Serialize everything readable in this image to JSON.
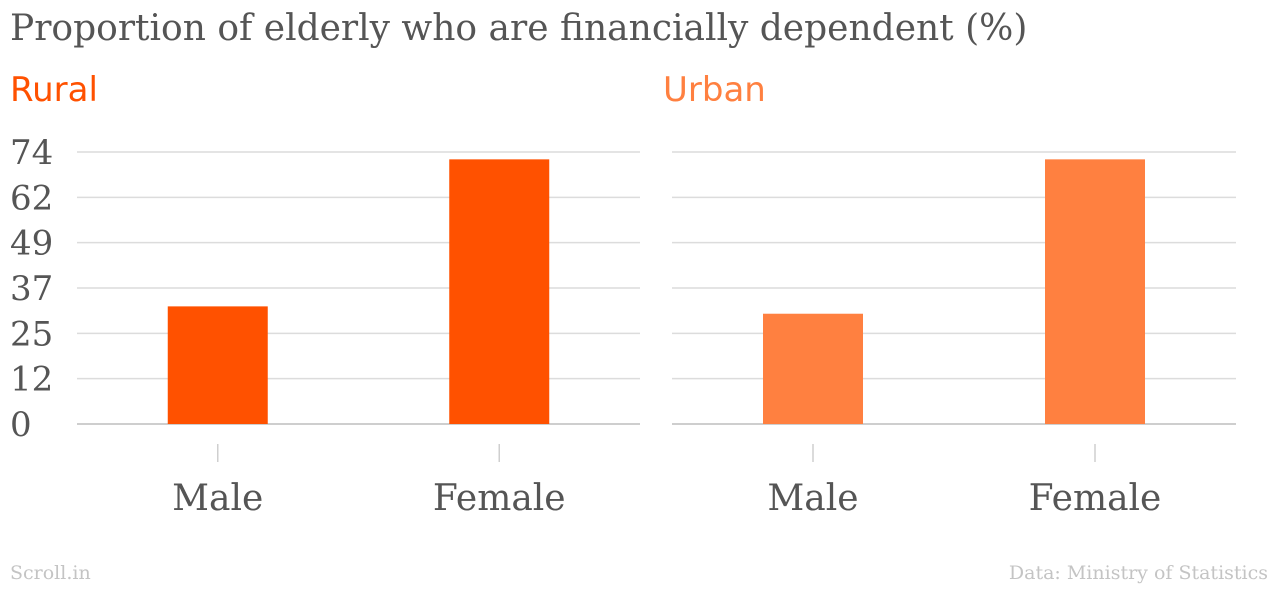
{
  "title": "Proportion of elderly who are financially dependent (%)",
  "footer": {
    "source_brand": "Scroll.in",
    "data_credit": "Data: Ministry of Statistics"
  },
  "chart_data": [
    {
      "type": "bar",
      "title": "Rural",
      "color": "#ff5100",
      "categories": [
        "Male",
        "Female"
      ],
      "values": [
        32,
        72
      ],
      "yticks": [
        "0",
        "12",
        "25",
        "37",
        "49",
        "62",
        "74"
      ],
      "ylim": [
        0,
        74
      ],
      "grid": true
    },
    {
      "type": "bar",
      "title": "Urban",
      "color": "#ff8040",
      "categories": [
        "Male",
        "Female"
      ],
      "values": [
        30,
        72
      ],
      "yticks": [],
      "ylim": [
        0,
        74
      ],
      "grid": true
    }
  ]
}
